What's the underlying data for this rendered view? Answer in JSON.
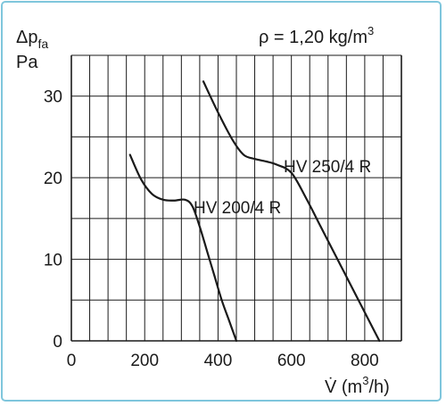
{
  "chart_data": {
    "type": "line",
    "density_note": "ρ = 1,20 kg/m",
    "density_exp": "3",
    "ylabel_delta": "Δp",
    "ylabel_sub": "fa",
    "ylabel_unit": "Pa",
    "xlabel_main": "V̇ (m",
    "xlabel_exp": "3",
    "xlabel_end": "/h)",
    "xlim": [
      0,
      900
    ],
    "ylim": [
      0,
      35
    ],
    "x_ticks": [
      0,
      200,
      400,
      600,
      800
    ],
    "y_ticks": [
      0,
      10,
      20,
      30
    ],
    "grid": true,
    "series": [
      {
        "name": "HV 200/4 R",
        "x": [
          160,
          190,
          220,
          250,
          280,
          310,
          330,
          350,
          370,
          390,
          410,
          430,
          450
        ],
        "y": [
          22.8,
          19.8,
          18.0,
          17.3,
          17.2,
          17.3,
          16.5,
          14.0,
          11.0,
          8.0,
          5.0,
          2.5,
          0
        ]
      },
      {
        "name": "HV 250/4 R",
        "x": [
          360,
          400,
          440,
          470,
          500,
          530,
          560,
          600,
          640,
          680,
          720,
          760,
          800,
          840
        ],
        "y": [
          31.8,
          28.0,
          24.6,
          22.8,
          22.3,
          22.0,
          21.6,
          20.6,
          17.5,
          14.0,
          10.5,
          7.0,
          3.5,
          0
        ]
      }
    ]
  }
}
